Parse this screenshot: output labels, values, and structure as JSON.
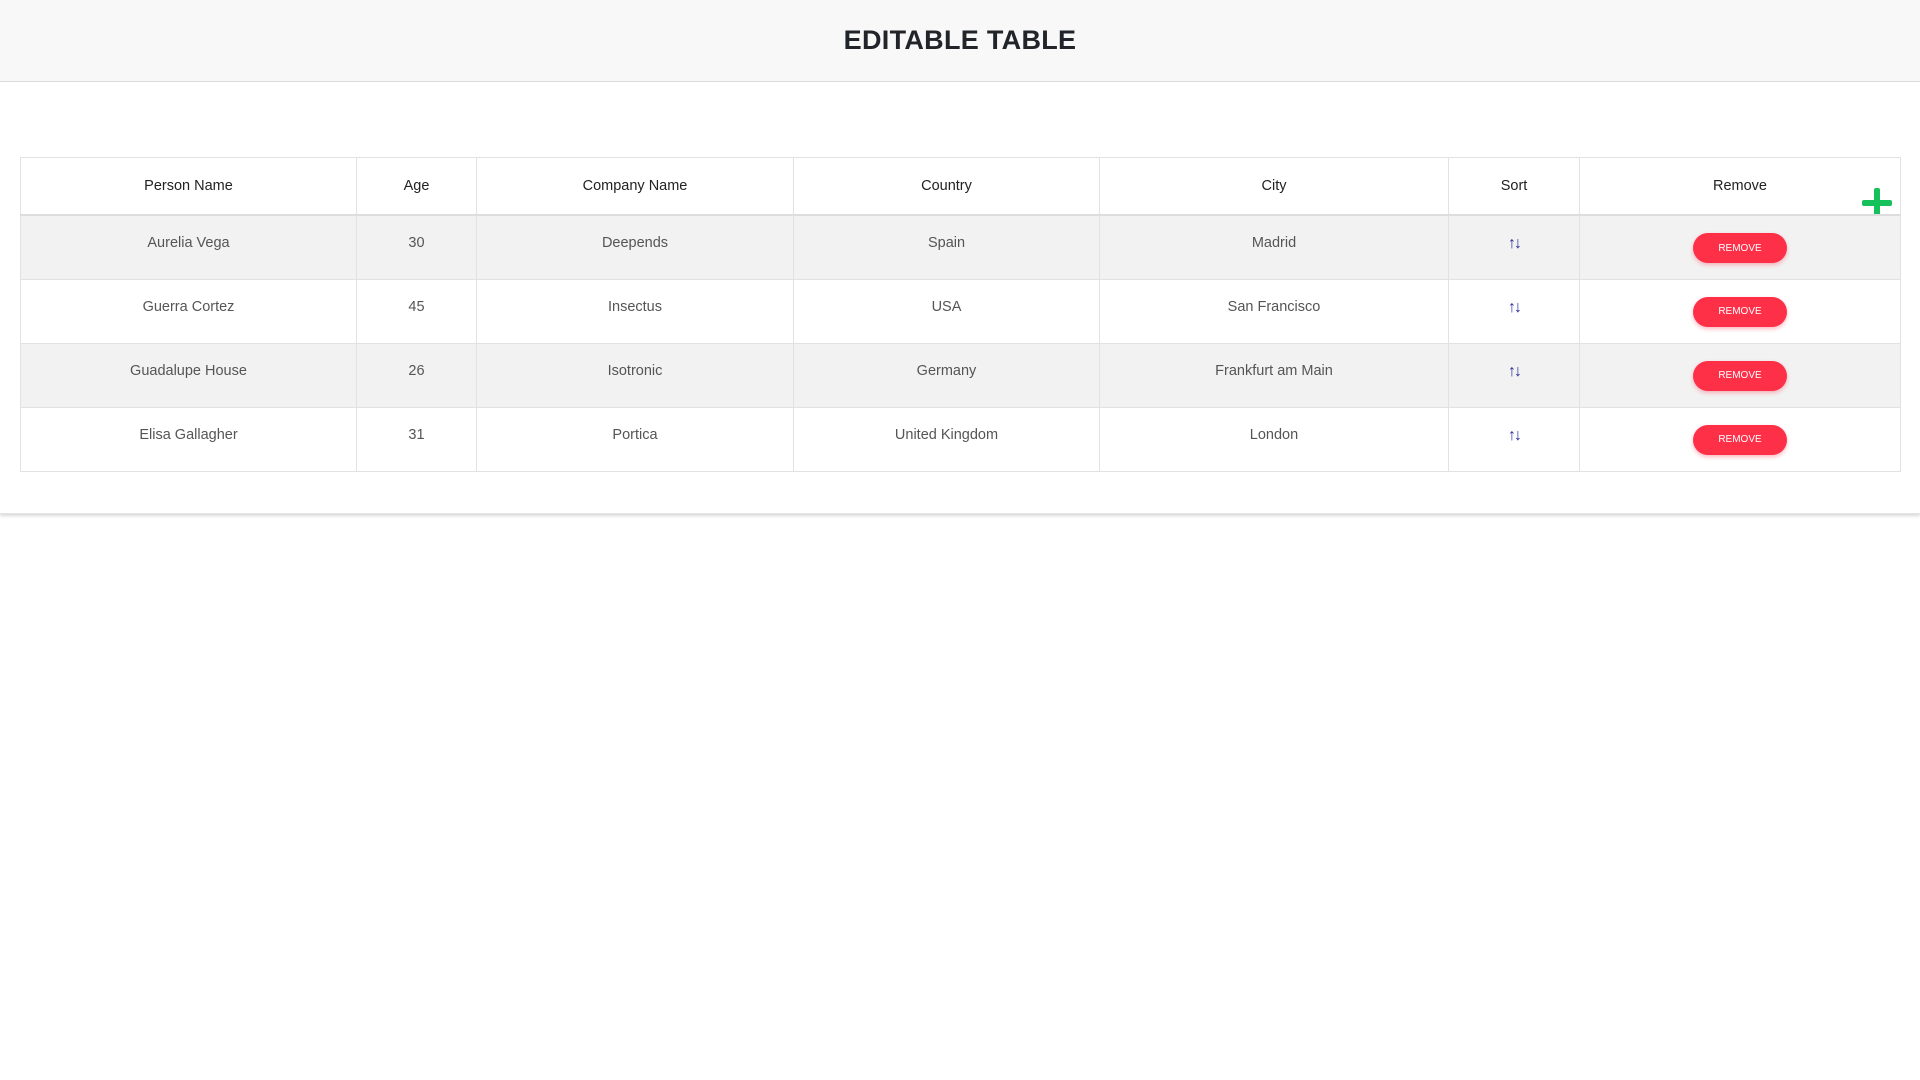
{
  "header": {
    "title": "EDITABLE TABLE"
  },
  "toolbar": {
    "add_icon": "plus-icon",
    "add_color": "#16c05a"
  },
  "table": {
    "columns": [
      "Person Name",
      "Age",
      "Company Name",
      "Country",
      "City",
      "Sort",
      "Remove"
    ],
    "rows": [
      {
        "name": "Aurelia Vega",
        "age": "30",
        "company": "Deepends",
        "country": "Spain",
        "city": "Madrid"
      },
      {
        "name": "Guerra Cortez",
        "age": "45",
        "company": "Insectus",
        "country": "USA",
        "city": "San Francisco"
      },
      {
        "name": "Guadalupe House",
        "age": "26",
        "company": "Isotronic",
        "country": "Germany",
        "city": "Frankfurt am Main"
      },
      {
        "name": "Elisa Gallagher",
        "age": "31",
        "company": "Portica",
        "country": "United Kingdom",
        "city": "London"
      }
    ],
    "sort_glyph": "↑↓",
    "remove_label": "REMOVE",
    "remove_color": "#fd3048"
  }
}
